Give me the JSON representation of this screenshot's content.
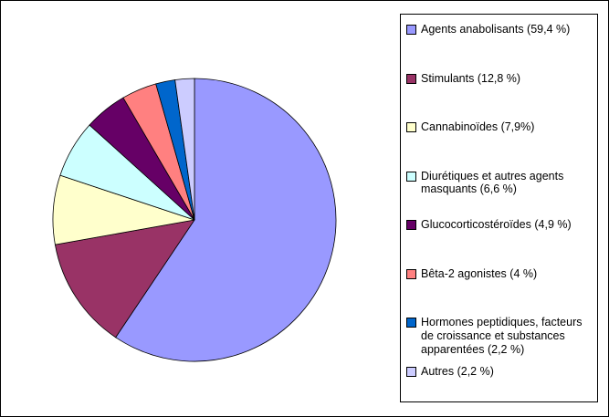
{
  "chart_data": {
    "type": "pie",
    "title": "",
    "categories": [
      "Agents anabolisants",
      "Stimulants",
      "Cannabinoïdes",
      "Diurétiques et autres agents masquants",
      "Glucocorticostéroïdes",
      "Bêta-2 agonistes",
      "Hormones peptidiques, facteurs de croissance et substances apparentées",
      "Autres"
    ],
    "values": [
      59.4,
      12.8,
      7.9,
      6.6,
      4.9,
      4,
      2.2,
      2.2
    ],
    "value_unit": "%",
    "legend_labels": [
      "Agents anabolisants (59,4 %)",
      "Stimulants (12,8 %)",
      "Cannabinoïdes (7,9%)",
      "Diurétiques et autres agents masquants (6,6 %)",
      "Glucocorticostéroïdes (4,9 %)",
      "Bêta-2 agonistes (4 %)",
      "Hormones peptidiques, facteurs de croissance et substances apparentées (2,2 %)",
      "Autres (2,2 %)"
    ],
    "colors": [
      "#9999FF",
      "#993366",
      "#FFFFCC",
      "#CCFFFF",
      "#660066",
      "#FF8080",
      "#0066CC",
      "#CCCCFF"
    ],
    "start_angle_deg": 0,
    "direction": "clockwise",
    "legend_position": "right",
    "background": "#FFFFFF",
    "border_color": "#000000"
  }
}
